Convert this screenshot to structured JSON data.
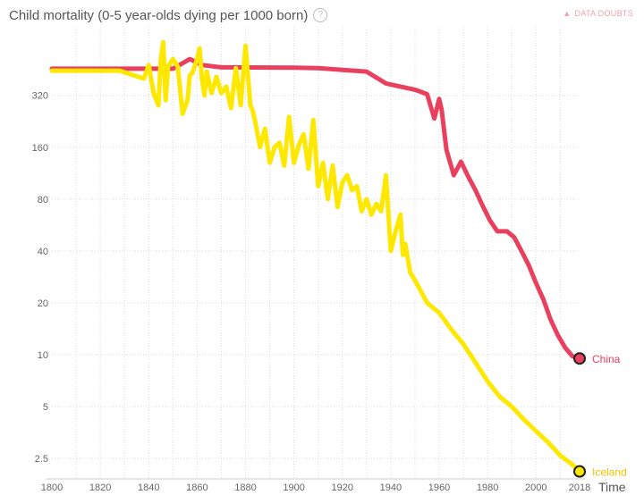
{
  "header": {
    "title": "Child mortality (0-5 year-olds dying per 1000 born)",
    "help_glyph": "?",
    "data_doubts_label": "DATA DOUBTS"
  },
  "chart_data": {
    "type": "line",
    "title": "Child mortality (0-5 year-olds dying per 1000 born)",
    "xlabel": "Time",
    "ylabel": "",
    "y_scale": "log",
    "xlim": [
      1800,
      2018
    ],
    "ylim": [
      1.9,
      800
    ],
    "x_ticks": [
      1800,
      1820,
      1840,
      1860,
      1880,
      1900,
      1920,
      1940,
      1960,
      1980,
      2000,
      2018
    ],
    "y_ticks": [
      2.5,
      5,
      10,
      20,
      40,
      80,
      160,
      320
    ],
    "grid": true,
    "series": [
      {
        "name": "China",
        "color": "#e8405e",
        "x": [
          1800,
          1850,
          1857,
          1862,
          1870,
          1900,
          1910,
          1920,
          1930,
          1938,
          1950,
          1955,
          1958,
          1960,
          1961,
          1963,
          1966,
          1969,
          1972,
          1975,
          1978,
          1981,
          1984,
          1988,
          1991,
          1994,
          1997,
          2000,
          2003,
          2006,
          2009,
          2012,
          2015,
          2018
        ],
        "values": [
          457,
          457,
          520,
          480,
          465,
          463,
          461,
          450,
          440,
          375,
          345,
          325,
          235,
          305,
          265,
          155,
          110,
          132,
          108,
          90,
          73,
          60,
          52,
          52,
          48,
          40,
          33,
          26,
          21,
          16,
          13,
          11,
          9.8,
          9.5
        ]
      },
      {
        "name": "Iceland",
        "color": "#ffe800",
        "x": [
          1800,
          1828,
          1838,
          1840,
          1842,
          1844,
          1845,
          1846,
          1847,
          1848,
          1850,
          1852,
          1854,
          1856,
          1857,
          1858,
          1860,
          1861,
          1862,
          1863,
          1864,
          1866,
          1868,
          1870,
          1872,
          1874,
          1876,
          1878,
          1880,
          1882,
          1883,
          1884,
          1886,
          1888,
          1890,
          1892,
          1894,
          1896,
          1898,
          1900,
          1902,
          1904,
          1906,
          1908,
          1910,
          1912,
          1914,
          1916,
          1918,
          1920,
          1922,
          1924,
          1926,
          1928,
          1930,
          1932,
          1934,
          1936,
          1938,
          1940,
          1942,
          1944,
          1945,
          1946,
          1948,
          1950,
          1955,
          1960,
          1965,
          1970,
          1975,
          1980,
          1985,
          1990,
          1995,
          2000,
          2005,
          2010,
          2015,
          2018
        ],
        "values": [
          445,
          445,
          400,
          480,
          330,
          280,
          520,
          650,
          300,
          470,
          520,
          470,
          250,
          300,
          420,
          430,
          520,
          600,
          400,
          320,
          440,
          330,
          410,
          330,
          360,
          270,
          460,
          280,
          620,
          280,
          260,
          225,
          160,
          205,
          130,
          160,
          170,
          125,
          240,
          130,
          165,
          190,
          120,
          230,
          95,
          130,
          80,
          125,
          72,
          100,
          110,
          90,
          95,
          68,
          80,
          65,
          75,
          68,
          110,
          40,
          52,
          65,
          38,
          44,
          30,
          27,
          20,
          17.5,
          14,
          11.5,
          9,
          7,
          5.7,
          5,
          4.2,
          3.6,
          3.1,
          2.6,
          2.3,
          2.1
        ]
      }
    ]
  }
}
